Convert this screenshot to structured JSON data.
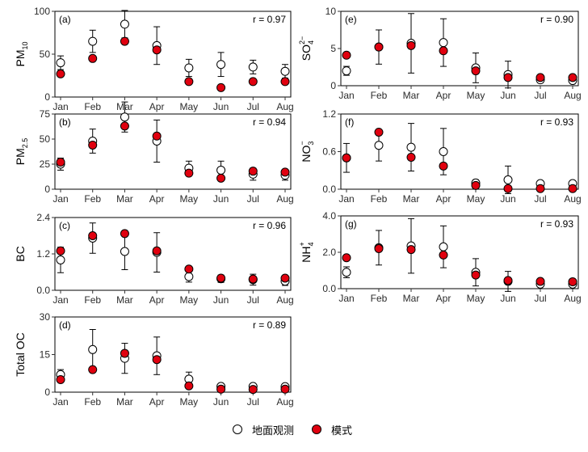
{
  "legend": {
    "observed_label": "地面观测",
    "model_label": "模式"
  },
  "months": [
    "Jan",
    "Feb",
    "Mar",
    "Apr",
    "May",
    "Jun",
    "Jul",
    "Aug"
  ],
  "colors": {
    "observed_fill": "#ffffff",
    "model_fill": "#e0000f",
    "error_bar": "#000000"
  },
  "chart_data": [
    {
      "type": "scatter",
      "panel": "(a)",
      "r": "r = 0.97",
      "ylabel": "PM",
      "ylabel_sub": "10",
      "ylim": [
        0,
        100
      ],
      "yticks": [
        0,
        50,
        100
      ],
      "observed": [
        40,
        65,
        85,
        60,
        34,
        38,
        35,
        30
      ],
      "observed_err": [
        8,
        13,
        16,
        22,
        10,
        14,
        8,
        8
      ],
      "model": [
        27,
        45,
        65,
        55,
        18,
        11,
        18,
        18
      ]
    },
    {
      "type": "scatter",
      "panel": "(b)",
      "r": "r = 0.94",
      "ylabel": "PM",
      "ylabel_sub": "2.5",
      "ylim": [
        0,
        75
      ],
      "yticks": [
        0,
        25,
        50,
        75
      ],
      "observed": [
        25,
        48,
        72,
        48,
        21,
        19,
        15,
        14
      ],
      "observed_err": [
        6,
        12,
        15,
        21,
        7,
        9,
        6,
        5
      ],
      "model": [
        27,
        44,
        63,
        53,
        16,
        11,
        18,
        17
      ]
    },
    {
      "type": "scatter",
      "panel": "(c)",
      "r": "r = 0.96",
      "ylabel": "BC",
      "ylim": [
        0,
        2.4
      ],
      "yticks": [
        0,
        1.2,
        2.4
      ],
      "yfmt": 1,
      "observed": [
        1.0,
        1.72,
        1.28,
        1.25,
        0.45,
        0.38,
        0.35,
        0.3
      ],
      "observed_err": [
        0.42,
        0.5,
        0.6,
        0.65,
        0.18,
        0.12,
        0.18,
        0.14
      ],
      "model": [
        1.3,
        1.8,
        1.87,
        1.3,
        0.7,
        0.4,
        0.37,
        0.4
      ]
    },
    {
      "type": "scatter",
      "panel": "(d)",
      "r": "r = 0.89",
      "ylabel": "Total OC",
      "ylim": [
        0,
        30
      ],
      "yticks": [
        0,
        15,
        30
      ],
      "observed": [
        7,
        17,
        13.5,
        14.5,
        5.2,
        2.3,
        2.3,
        2.2
      ],
      "observed_err": [
        2,
        8,
        6,
        7.5,
        2.8,
        1,
        0.8,
        0.8
      ],
      "model": [
        5,
        9,
        15.5,
        13,
        2.5,
        1.2,
        1.1,
        1.2
      ]
    },
    {
      "type": "scatter",
      "panel": "(e)",
      "r": "r = 0.90",
      "ylabel": "SO",
      "ylabel_sub": "4",
      "ylabel_sup": "2−",
      "ylim": [
        0,
        10
      ],
      "yticks": [
        0,
        5,
        10
      ],
      "observed": [
        2,
        5.2,
        5.7,
        5.8,
        2.4,
        1.5,
        0.8,
        0.7
      ],
      "observed_err": [
        0.6,
        2.3,
        4,
        3.2,
        2,
        1.8,
        0.4,
        0.3
      ],
      "model": [
        4.1,
        5.2,
        5.4,
        4.7,
        2.0,
        1.1,
        1.1,
        1.1
      ]
    },
    {
      "type": "scatter",
      "panel": "(f)",
      "r": "r = 0.93",
      "ylabel": "NO",
      "ylabel_sub": "3",
      "ylabel_sup": "−",
      "ylim": [
        0,
        1.2
      ],
      "yticks": [
        0,
        0.6,
        1.2
      ],
      "yfmt": 1,
      "observed": [
        0.5,
        0.7,
        0.67,
        0.6,
        0.1,
        0.15,
        0.09,
        0.09
      ],
      "observed_err": [
        0.23,
        0.25,
        0.38,
        0.37,
        0.05,
        0.22,
        0.04,
        0.04
      ],
      "model": [
        0.5,
        0.91,
        0.51,
        0.37,
        0.06,
        0.01,
        0.01,
        0.01
      ]
    },
    {
      "type": "scatter",
      "panel": "(g)",
      "r": "r = 0.93",
      "ylabel": "NH",
      "ylabel_sub": "4",
      "ylabel_sup": "+",
      "ylim": [
        0,
        4
      ],
      "yticks": [
        0,
        2,
        4
      ],
      "yfmt": 1,
      "observed": [
        0.9,
        2.25,
        2.35,
        2.3,
        0.9,
        0.4,
        0.25,
        0.25
      ],
      "observed_err": [
        0.3,
        0.95,
        1.5,
        1.15,
        0.75,
        0.55,
        0.1,
        0.1
      ],
      "model": [
        1.7,
        2.2,
        2.15,
        1.85,
        0.75,
        0.45,
        0.4,
        0.38
      ]
    }
  ]
}
